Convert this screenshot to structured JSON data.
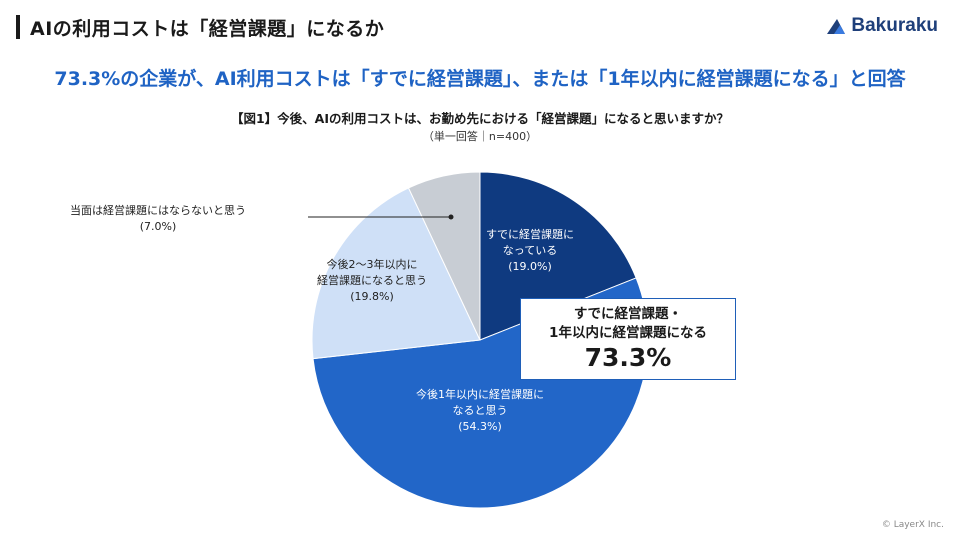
{
  "page": {
    "title": "AIの利用コストは「経営課題」になるか",
    "headline": "73.3%の企業が、AI利用コストは「すでに経営課題」、または「1年以内に経営課題になる」と回答",
    "copyright": "© LayerX Inc."
  },
  "logo": {
    "text": "Bakuraku"
  },
  "chart_data": {
    "type": "pie",
    "title": "【図1】今後、AIの利用コストは、お勤め先における「経営課題」になると思いますか？",
    "subtitle": "（単一回答｜n=400）",
    "start_angle": "12 o'clock",
    "direction": "clockwise",
    "slices": [
      {
        "label": [
          "すでに経営課題に",
          "なっている",
          "(19.0%)"
        ],
        "value": 19.0,
        "color": "#0f3a80",
        "label_color": "#ffffff"
      },
      {
        "label": [
          "今後1年以内に経営課題に",
          "なると思う",
          "(54.3%)"
        ],
        "value": 54.3,
        "color": "#2266c8",
        "label_color": "#ffffff"
      },
      {
        "label": [
          "今後2〜3年以内に",
          "経営課題になると思う",
          "(19.8%)"
        ],
        "value": 19.8,
        "color": "#cfe0f7",
        "label_color": "#222222"
      },
      {
        "label": [
          "当面は経営課題にはならないと思う",
          "(7.0%)"
        ],
        "value": 7.0,
        "color": "#c8cdd4",
        "label_color": "#222222"
      }
    ],
    "callout": {
      "line1": "すでに経営課題・",
      "line2": "1年以内に経営課題になる",
      "value": "73.3%"
    }
  }
}
